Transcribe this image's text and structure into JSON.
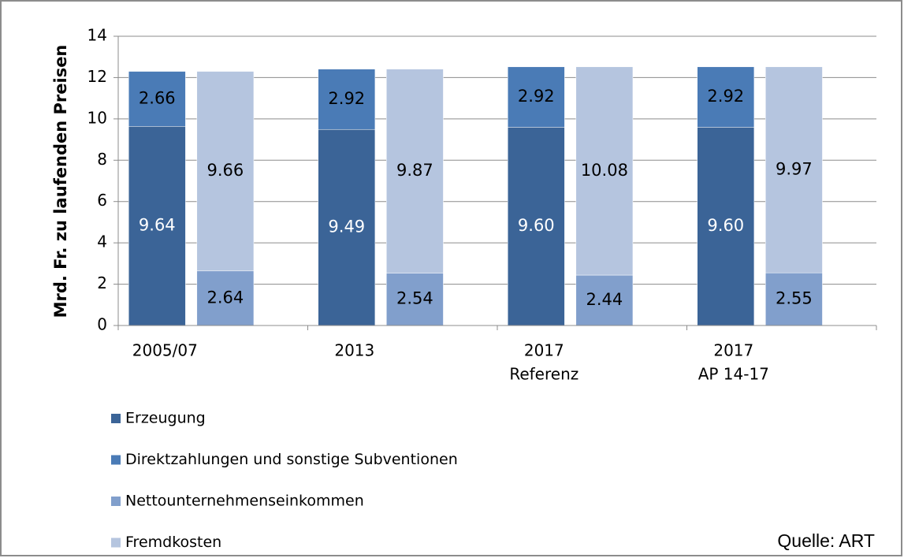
{
  "chart_data": {
    "type": "bar",
    "y_label": "Mrd. Fr. zu laufenden Preisen",
    "annotation": "Quelle: ART",
    "categories": [
      [
        "2005/07"
      ],
      [
        "2013"
      ],
      [
        "2017",
        "Referenz"
      ],
      [
        "2017",
        "AP 14-17"
      ]
    ],
    "series": [
      {
        "name": "Erzeugung",
        "color": "#3b6497",
        "label_color": "#ffffff",
        "values": [
          9.64,
          9.49,
          9.6,
          9.6
        ],
        "value_labels": [
          "9.64",
          "9.49",
          "9.60",
          "9.60"
        ]
      },
      {
        "name": "Direktzahlungen und sonstige Subventionen",
        "color": "#4a7bb6",
        "label_color": "#000000",
        "values": [
          2.66,
          2.92,
          2.92,
          2.92
        ],
        "value_labels": [
          "2.66",
          "2.92",
          "2.92",
          "2.92"
        ]
      },
      {
        "name": "Nettounternehmenseinkommen",
        "color": "#819fcc",
        "label_color": "#000000",
        "values": [
          2.64,
          2.54,
          2.44,
          2.55
        ],
        "value_labels": [
          "2.64",
          "2.54",
          "2.44",
          "2.55"
        ]
      },
      {
        "name": "Fremdkosten",
        "color": "#b5c5df",
        "label_color": "#000000",
        "values": [
          9.66,
          9.87,
          10.08,
          9.97
        ],
        "value_labels": [
          "9.66",
          "9.87",
          "10.08",
          "9.97"
        ]
      }
    ],
    "ylim": [
      0,
      14
    ],
    "yticks": [
      0,
      2,
      4,
      6,
      8,
      10,
      12,
      14
    ],
    "grid": true
  }
}
